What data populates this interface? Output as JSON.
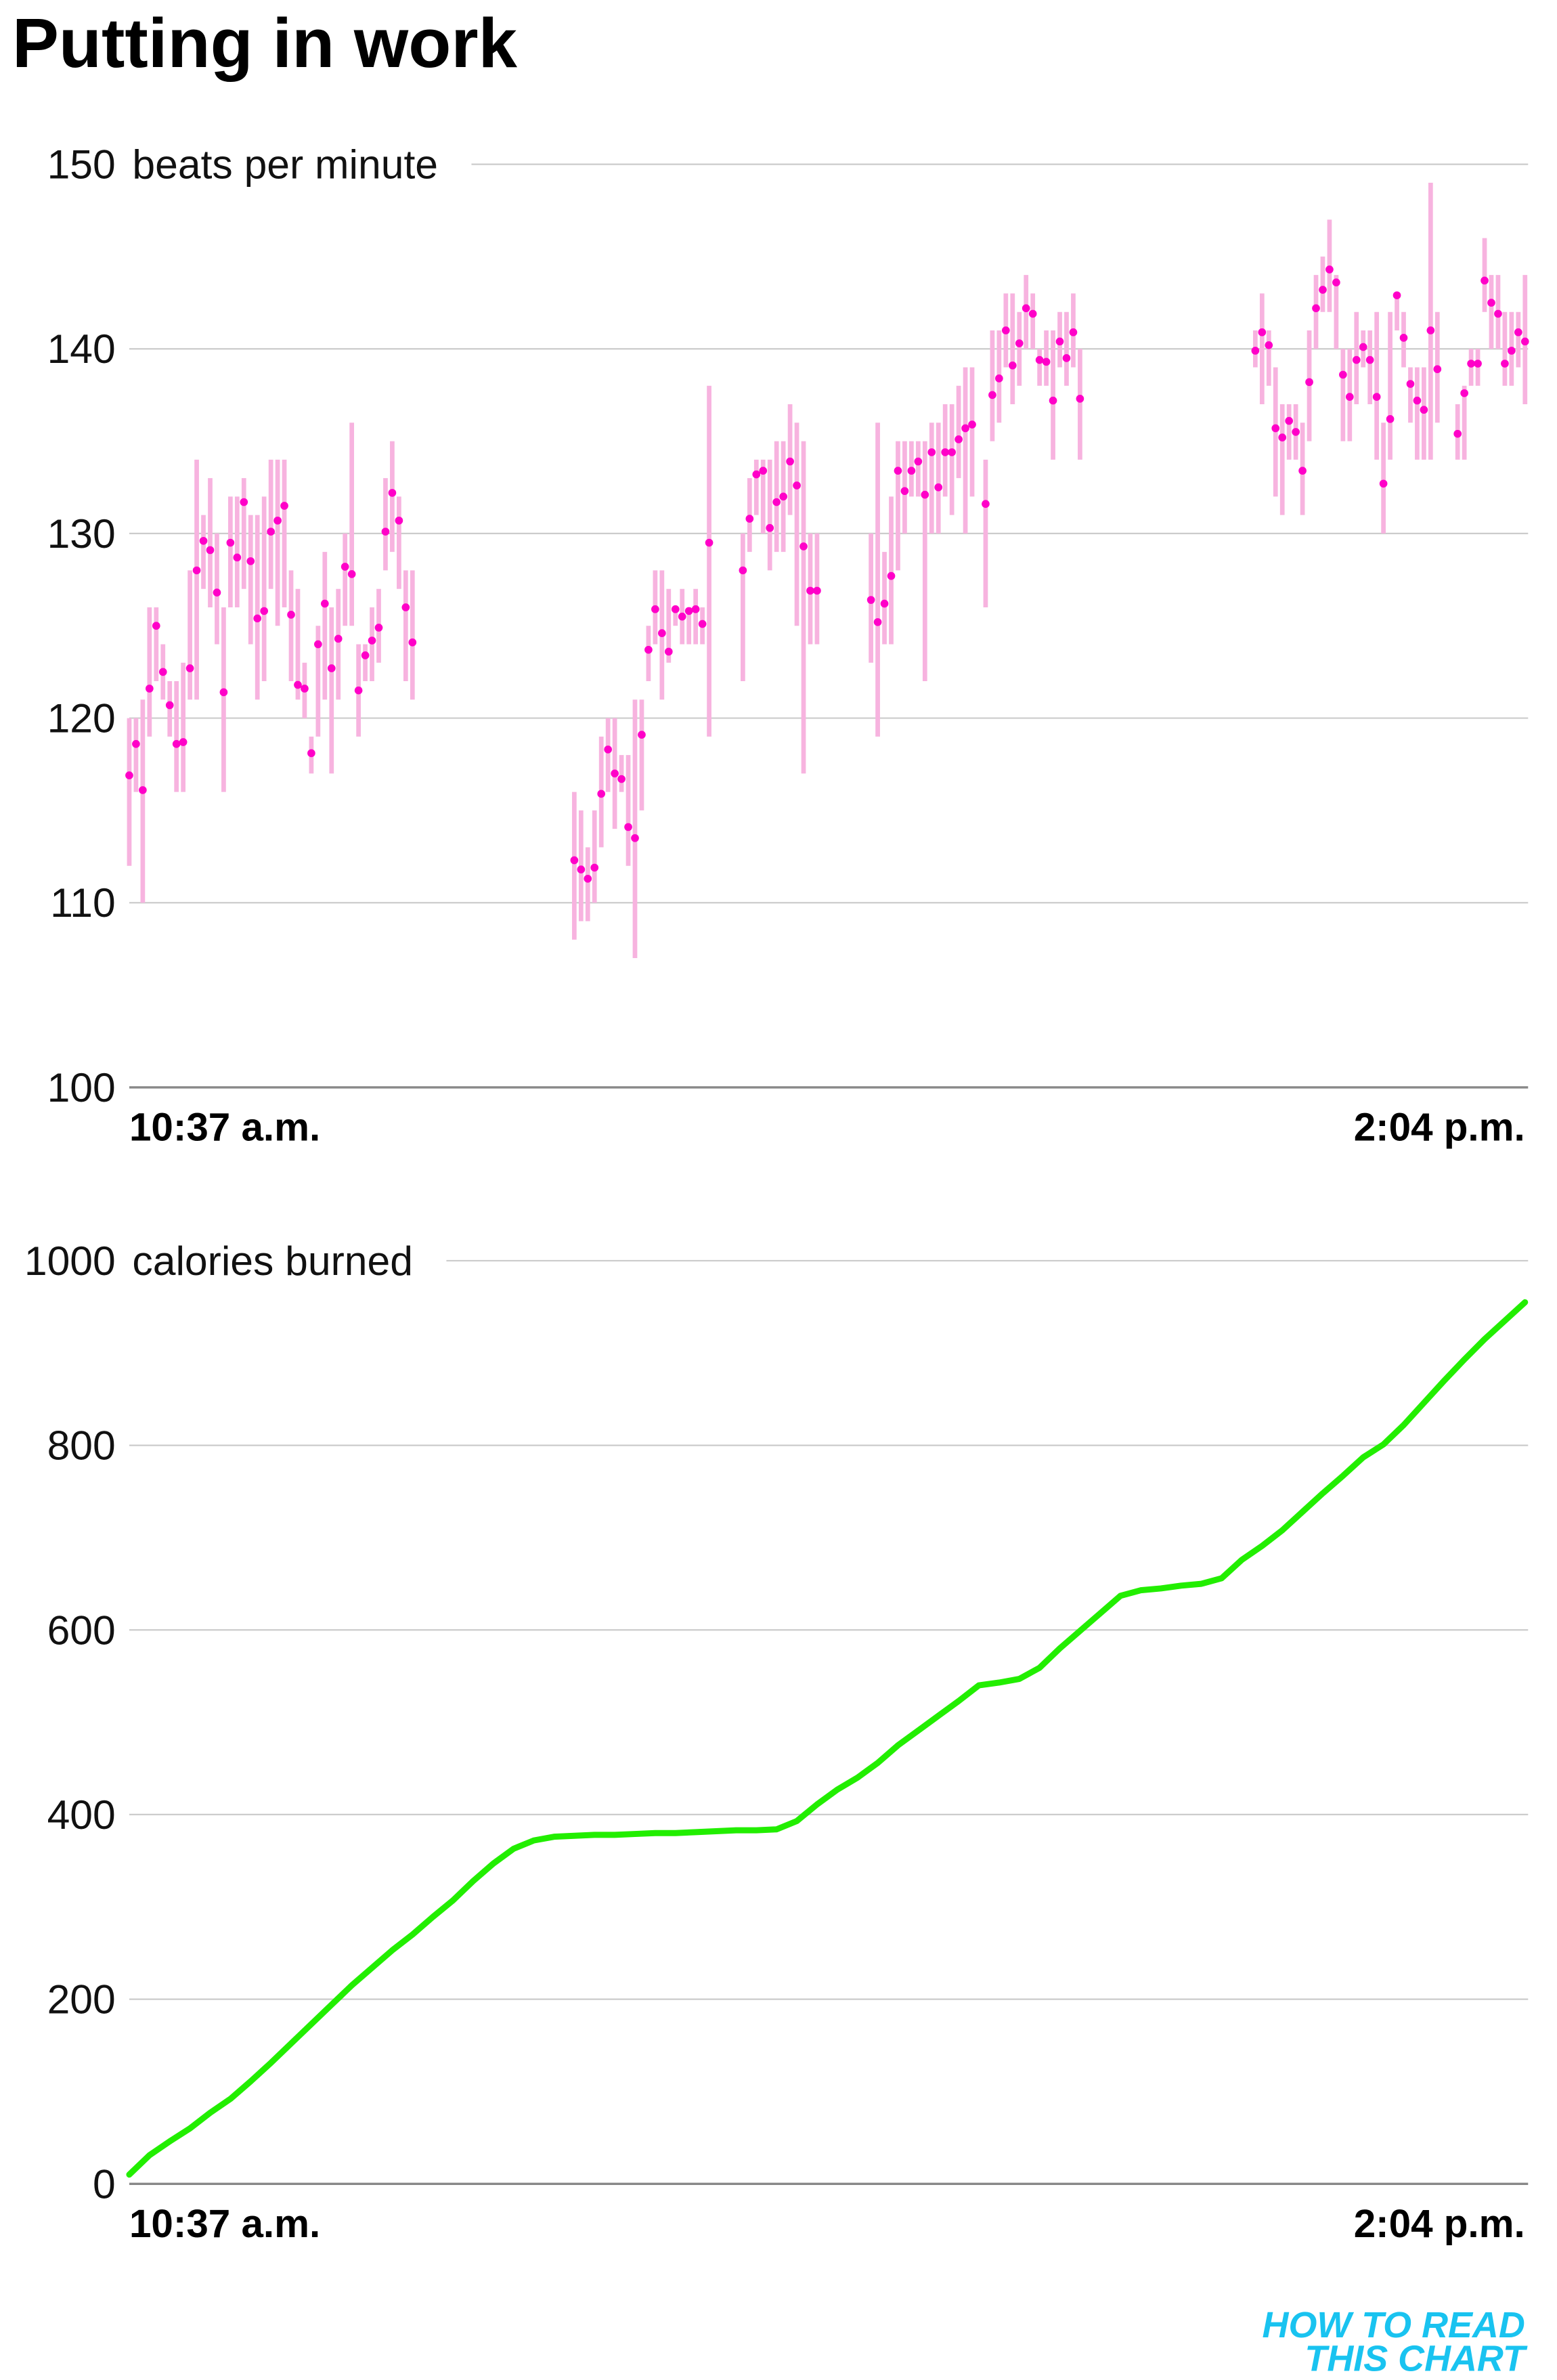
{
  "title": "Putting in work",
  "logo": [
    "HOW TO READ",
    "THIS CHART"
  ],
  "chart_data": [
    {
      "type": "errorbar",
      "ylabel": "beats per minute",
      "ylim": [
        100,
        150
      ],
      "yticks": [
        100,
        110,
        120,
        130,
        140,
        150
      ],
      "grid": true,
      "color": "#ff00c8",
      "range_color": "#f7b3df",
      "categories": [
        "10:37 a.m.",
        null,
        null,
        null,
        null,
        null,
        null,
        null,
        null,
        null,
        null,
        null,
        null,
        null,
        null,
        null,
        null,
        null,
        null,
        null,
        null,
        null,
        null,
        null,
        null,
        null,
        null,
        null,
        null,
        null,
        null,
        null,
        null,
        null,
        null,
        null,
        null,
        null,
        null,
        null,
        null,
        null,
        null,
        null,
        null,
        null,
        null,
        null,
        null,
        null,
        null,
        null,
        null,
        null,
        null,
        null,
        null,
        null,
        null,
        null,
        null,
        null,
        null,
        null,
        null,
        null,
        null,
        null,
        null,
        null,
        null,
        null,
        null,
        null,
        null,
        null,
        null,
        null,
        null,
        null,
        null,
        null,
        null,
        null,
        null,
        null,
        null,
        null,
        null,
        null,
        null,
        null,
        null,
        null,
        null,
        null,
        null,
        null,
        null,
        null,
        null,
        null,
        null,
        null,
        null,
        null,
        null,
        null,
        null,
        null,
        null,
        null,
        null,
        null,
        null,
        null,
        null,
        null,
        null,
        null,
        null,
        null,
        null,
        null,
        null,
        null,
        null,
        null,
        null,
        null,
        null,
        null,
        null,
        null,
        null,
        null,
        null,
        null,
        null,
        null,
        null,
        null,
        null,
        null,
        null,
        null,
        null,
        null,
        null,
        null,
        null,
        null,
        null,
        null,
        null,
        null,
        null,
        null,
        null,
        null,
        null,
        null,
        null,
        null,
        null,
        null,
        null,
        null,
        null,
        null,
        null,
        null,
        null,
        null,
        null,
        null,
        null,
        null,
        null,
        null,
        null,
        null,
        null,
        null,
        null,
        null,
        null,
        null,
        null,
        null,
        null,
        null,
        null,
        null,
        null,
        null,
        null,
        null,
        null,
        null,
        null,
        null,
        null,
        null,
        null,
        null,
        null,
        "2:04 p.m."
      ],
      "values": [
        116.9,
        118.6,
        116.1,
        121.6,
        125.0,
        122.5,
        120.7,
        118.6,
        118.7,
        122.7,
        128.0,
        129.6,
        129.1,
        126.8,
        121.4,
        129.5,
        128.7,
        131.7,
        128.5,
        125.4,
        125.8,
        130.1,
        130.7,
        131.5,
        125.6,
        121.8,
        121.6,
        118.1,
        124.0,
        126.2,
        122.7,
        124.3,
        128.2,
        127.8,
        121.5,
        123.4,
        124.2,
        124.9,
        130.1,
        132.2,
        130.7,
        126.0,
        124.1,
        null,
        null,
        null,
        null,
        null,
        null,
        null,
        null,
        null,
        null,
        null,
        null,
        null,
        null,
        null,
        null,
        null,
        null,
        null,
        null,
        null,
        null,
        null,
        112.3,
        111.8,
        111.3,
        111.9,
        115.9,
        118.3,
        117.0,
        116.7,
        114.1,
        113.5,
        119.1,
        123.7,
        125.9,
        124.6,
        123.6,
        125.9,
        125.5,
        125.8,
        125.9,
        125.1,
        129.5,
        null,
        null,
        null,
        null,
        128.0,
        130.8,
        133.2,
        133.4,
        130.3,
        131.7,
        132.0,
        133.9,
        132.6,
        129.3,
        126.9,
        126.9,
        null,
        null,
        null,
        null,
        null,
        null,
        null,
        126.4,
        125.2,
        126.2,
        127.7,
        133.4,
        132.3,
        133.4,
        133.9,
        132.1,
        134.4,
        132.5,
        134.4,
        134.4,
        135.1,
        135.7,
        135.9,
        null,
        131.6,
        137.5,
        138.4,
        141.0,
        139.1,
        140.3,
        142.2,
        141.9,
        139.4,
        139.3,
        137.2,
        140.4,
        139.5,
        140.9,
        137.3,
        null,
        null,
        null,
        null,
        null,
        null,
        null,
        null,
        null,
        null,
        null,
        null,
        null,
        null,
        null,
        null,
        null,
        null,
        null,
        null,
        null,
        null,
        null,
        null,
        null,
        139.9,
        140.9,
        140.2,
        135.7,
        135.2,
        136.1,
        135.5,
        133.4,
        138.2,
        142.2,
        143.2,
        144.3,
        143.6,
        138.6,
        137.4,
        139.4,
        140.1,
        139.4,
        137.4,
        132.7,
        136.2,
        142.9,
        140.6,
        138.1,
        137.2,
        136.7,
        141.0,
        138.9,
        null,
        null,
        135.4,
        137.6,
        139.2,
        139.2,
        143.7,
        142.5,
        141.9,
        139.2,
        139.9,
        140.9,
        140.4
      ],
      "lows": [
        112,
        116,
        110,
        119,
        122,
        121,
        119,
        116,
        116,
        121,
        121,
        127,
        126,
        124,
        116,
        126,
        126,
        127,
        124,
        121,
        122,
        127,
        125,
        126,
        122,
        121,
        120,
        117,
        119,
        121,
        117,
        121,
        125,
        125,
        119,
        122,
        122,
        123,
        128,
        129,
        127,
        122,
        121,
        null,
        null,
        null,
        null,
        null,
        null,
        null,
        null,
        null,
        null,
        null,
        null,
        null,
        null,
        null,
        null,
        null,
        null,
        null,
        null,
        null,
        null,
        null,
        108,
        109,
        109,
        110,
        113,
        116,
        114,
        116,
        112,
        107,
        115,
        122,
        124,
        121,
        123,
        125,
        124,
        124,
        124,
        124,
        119,
        null,
        null,
        null,
        null,
        122,
        129,
        131,
        130,
        128,
        129,
        129,
        131,
        125,
        117,
        124,
        124,
        null,
        null,
        null,
        null,
        null,
        null,
        null,
        123,
        119,
        124,
        124,
        128,
        130,
        132,
        132,
        122,
        130,
        130,
        132,
        131,
        133,
        130,
        132,
        null,
        126,
        135,
        136,
        139,
        137,
        138,
        140,
        140,
        138,
        138,
        134,
        139,
        138,
        139,
        134,
        null,
        null,
        null,
        null,
        null,
        null,
        null,
        null,
        null,
        null,
        null,
        null,
        null,
        null,
        null,
        null,
        null,
        null,
        null,
        null,
        null,
        null,
        null,
        null,
        null,
        139,
        137,
        138,
        132,
        131,
        134,
        134,
        131,
        135,
        140,
        142,
        142,
        140,
        135,
        135,
        137,
        139,
        137,
        134,
        130,
        134,
        141,
        139,
        136,
        134,
        134,
        134,
        136,
        null,
        null,
        134,
        134,
        138,
        138,
        142,
        140,
        140,
        138,
        138,
        139,
        137
      ],
      "highs": [
        120,
        120,
        121,
        126,
        126,
        124,
        122,
        122,
        123,
        128,
        134,
        131,
        133,
        130,
        126,
        132,
        132,
        133,
        131,
        131,
        132,
        134,
        134,
        134,
        128,
        127,
        123,
        119,
        125,
        129,
        126,
        127,
        130,
        136,
        124,
        124,
        126,
        127,
        133,
        135,
        132,
        128,
        128,
        null,
        null,
        null,
        null,
        null,
        null,
        null,
        null,
        null,
        null,
        null,
        null,
        null,
        null,
        null,
        null,
        null,
        null,
        null,
        null,
        null,
        null,
        null,
        116,
        115,
        113,
        115,
        119,
        120,
        120,
        118,
        118,
        121,
        121,
        125,
        128,
        128,
        127,
        126,
        127,
        126,
        127,
        126,
        138,
        null,
        null,
        null,
        null,
        130,
        133,
        134,
        134,
        134,
        135,
        135,
        137,
        136,
        135,
        130,
        130,
        null,
        null,
        null,
        null,
        null,
        null,
        null,
        130,
        136,
        129,
        132,
        135,
        135,
        135,
        135,
        135,
        136,
        136,
        137,
        137,
        138,
        139,
        139,
        null,
        134,
        141,
        141,
        143,
        143,
        142,
        144,
        143,
        140,
        141,
        141,
        142,
        142,
        143,
        140,
        null,
        null,
        null,
        null,
        null,
        null,
        null,
        null,
        null,
        null,
        null,
        null,
        null,
        null,
        null,
        null,
        null,
        null,
        null,
        null,
        null,
        null,
        null,
        null,
        null,
        141,
        143,
        141,
        139,
        137,
        137,
        137,
        136,
        141,
        144,
        145,
        147,
        144,
        140,
        140,
        142,
        141,
        141,
        142,
        136,
        142,
        143,
        142,
        139,
        139,
        139,
        149,
        142,
        null,
        null,
        137,
        138,
        140,
        140,
        146,
        144,
        144,
        142,
        142,
        142,
        144
      ]
    },
    {
      "type": "line",
      "ylabel": "calories burned",
      "ylim": [
        0,
        1000
      ],
      "yticks": [
        0,
        200,
        400,
        600,
        800,
        1000
      ],
      "grid": true,
      "color": "#22ee00",
      "categories": [
        "10:37 a.m.",
        null,
        null,
        null,
        null,
        null,
        null,
        null,
        null,
        null,
        null,
        null,
        null,
        null,
        null,
        null,
        null,
        null,
        null,
        null,
        null,
        null,
        null,
        null,
        null,
        null,
        null,
        null,
        null,
        null,
        null,
        null,
        null,
        null,
        null,
        null,
        null,
        null,
        null,
        null,
        null,
        null,
        null,
        null,
        null,
        null,
        null,
        null,
        null,
        null,
        null,
        null,
        null,
        null,
        null,
        null,
        null,
        null,
        null,
        null,
        null,
        null,
        null,
        null,
        null,
        null,
        null,
        null,
        null,
        "2:04 p.m."
      ],
      "values": [
        10,
        31,
        46,
        60,
        77,
        92,
        111,
        131,
        152,
        173,
        194,
        215,
        234,
        253,
        270,
        289,
        307,
        328,
        347,
        363,
        372,
        376,
        377,
        378,
        378,
        379,
        380,
        380,
        381,
        382,
        383,
        383,
        384,
        393,
        411,
        427,
        440,
        456,
        475,
        491,
        507,
        523,
        540,
        543,
        547,
        559,
        580,
        599,
        618,
        637,
        643,
        645,
        648,
        650,
        656,
        676,
        691,
        708,
        728,
        748,
        767,
        787,
        801,
        822,
        846,
        870,
        893,
        915,
        935,
        955
      ]
    }
  ]
}
